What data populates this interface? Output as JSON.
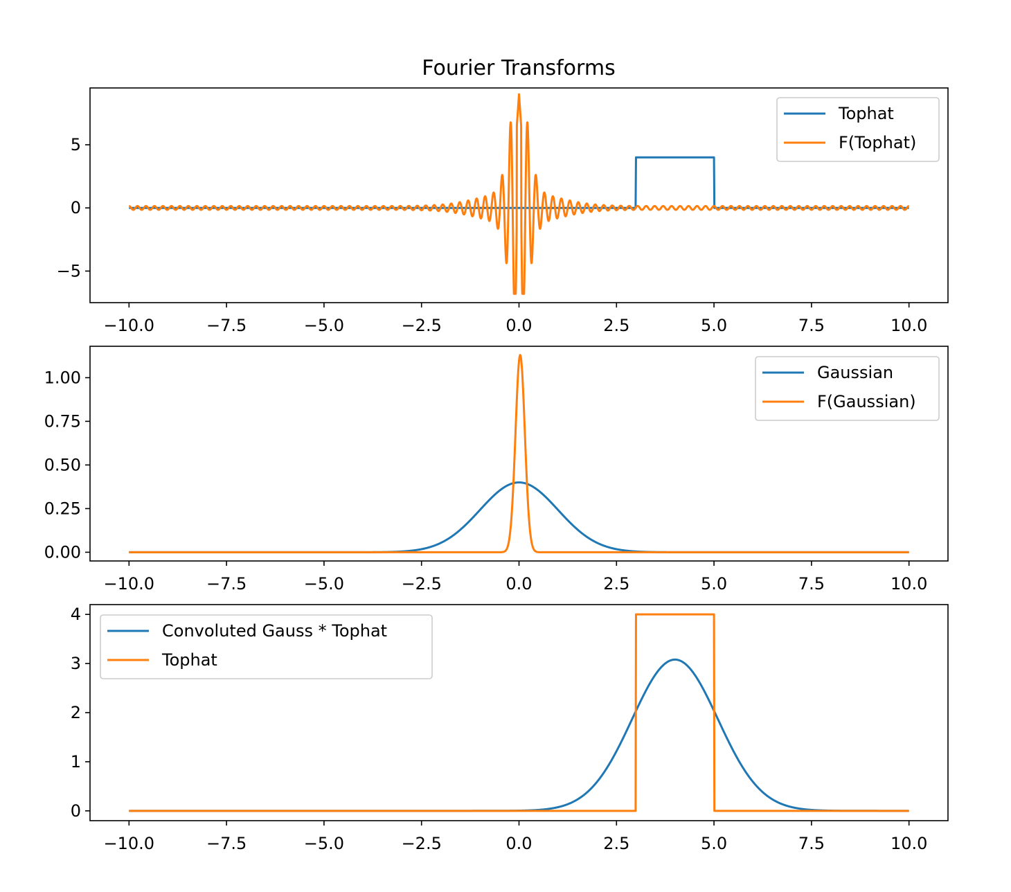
{
  "title": "Fourier Transforms",
  "colors": {
    "blue": "#1f77b4",
    "orange": "#ff7f0e"
  },
  "chart_data": [
    {
      "type": "line",
      "xlim": [
        -11,
        11
      ],
      "ylim": [
        -7.5,
        9.5
      ],
      "xticks": [
        -10.0,
        -7.5,
        -5.0,
        -2.5,
        0.0,
        2.5,
        5.0,
        7.5,
        10.0
      ],
      "xtick_labels": [
        "−10.0",
        "−7.5",
        "−5.0",
        "−2.5",
        "0.0",
        "2.5",
        "5.0",
        "7.5",
        "10.0"
      ],
      "yticks": [
        -5,
        0,
        5
      ],
      "ytick_labels": [
        "−5",
        "0",
        "5"
      ],
      "legend_loc": "upper right",
      "series": [
        {
          "name": "Tophat",
          "color": "#1f77b4",
          "points": [
            [
              -10,
              0
            ],
            [
              2.99,
              0
            ],
            [
              3.0,
              4
            ],
            [
              5.0,
              4
            ],
            [
              5.01,
              0
            ],
            [
              10,
              0
            ]
          ]
        },
        {
          "name": "F(Tophat)",
          "color": "#ff7f0e",
          "function": "sinc-oscillation",
          "x_range": [
            -10,
            10
          ],
          "peak_max": 9.0,
          "peak_min": -6.8
        }
      ]
    },
    {
      "type": "line",
      "xlim": [
        -11,
        11
      ],
      "ylim": [
        -0.05,
        1.18
      ],
      "xticks": [
        -10.0,
        -7.5,
        -5.0,
        -2.5,
        0.0,
        2.5,
        5.0,
        7.5,
        10.0
      ],
      "xtick_labels": [
        "−10.0",
        "−7.5",
        "−5.0",
        "−2.5",
        "0.0",
        "2.5",
        "5.0",
        "7.5",
        "10.0"
      ],
      "yticks": [
        0.0,
        0.25,
        0.5,
        0.75,
        1.0
      ],
      "ytick_labels": [
        "0.00",
        "0.25",
        "0.50",
        "0.75",
        "1.00"
      ],
      "legend_loc": "upper right",
      "series": [
        {
          "name": "Gaussian",
          "color": "#1f77b4",
          "function": "gaussian",
          "amplitude": 0.4,
          "center": 0,
          "sigma": 1.0
        },
        {
          "name": "F(Gaussian)",
          "color": "#ff7f0e",
          "function": "gaussian",
          "amplitude": 1.13,
          "center": 0.03,
          "sigma": 0.12
        }
      ]
    },
    {
      "type": "line",
      "xlim": [
        -11,
        11
      ],
      "ylim": [
        -0.2,
        4.2
      ],
      "xticks": [
        -10.0,
        -7.5,
        -5.0,
        -2.5,
        0.0,
        2.5,
        5.0,
        7.5,
        10.0
      ],
      "xtick_labels": [
        "−10.0",
        "−7.5",
        "−5.0",
        "−2.5",
        "0.0",
        "2.5",
        "5.0",
        "7.5",
        "10.0"
      ],
      "yticks": [
        0,
        1,
        2,
        3,
        4
      ],
      "ytick_labels": [
        "0",
        "1",
        "2",
        "3",
        "4"
      ],
      "legend_loc": "upper left",
      "series": [
        {
          "name": "Convoluted Gauss * Tophat",
          "color": "#1f77b4",
          "function": "gaussian",
          "amplitude": 3.08,
          "center": 4.0,
          "sigma": 1.1
        },
        {
          "name": "Tophat",
          "color": "#ff7f0e",
          "points": [
            [
              -10,
              0
            ],
            [
              2.99,
              0
            ],
            [
              3.0,
              4
            ],
            [
              5.0,
              4
            ],
            [
              5.01,
              0
            ],
            [
              10,
              0
            ]
          ]
        }
      ]
    }
  ]
}
